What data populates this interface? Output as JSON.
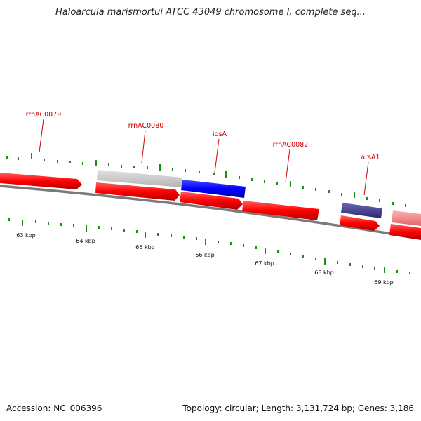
{
  "title": "Haloarcula marismortui ATCC 43049 chromosome I, complete seq...",
  "footer": {
    "accession": "Accession: NC_006396",
    "summary": "Topology: circular; Length: 3,131,724 bp; Genes: 3,186"
  },
  "colors": {
    "backbone": "#808080",
    "cds_forward": "#ff0000",
    "gene_blue": "#0000ff",
    "gene_purple": "#3d3a8c",
    "gene_pink": "#f08080",
    "gene_gray": "#c8c8c8",
    "tick": "#1a8c1a",
    "label": "#cc0000"
  },
  "scale_labels": [
    "63 kbp",
    "64 kbp",
    "65 kbp",
    "66 kbp",
    "67 kbp",
    "68 kbp",
    "69 kbp"
  ],
  "gene_labels": [
    "rrnAC0079",
    "rrnAC0080",
    "idsA",
    "rrnAC0082",
    "arsA1"
  ]
}
